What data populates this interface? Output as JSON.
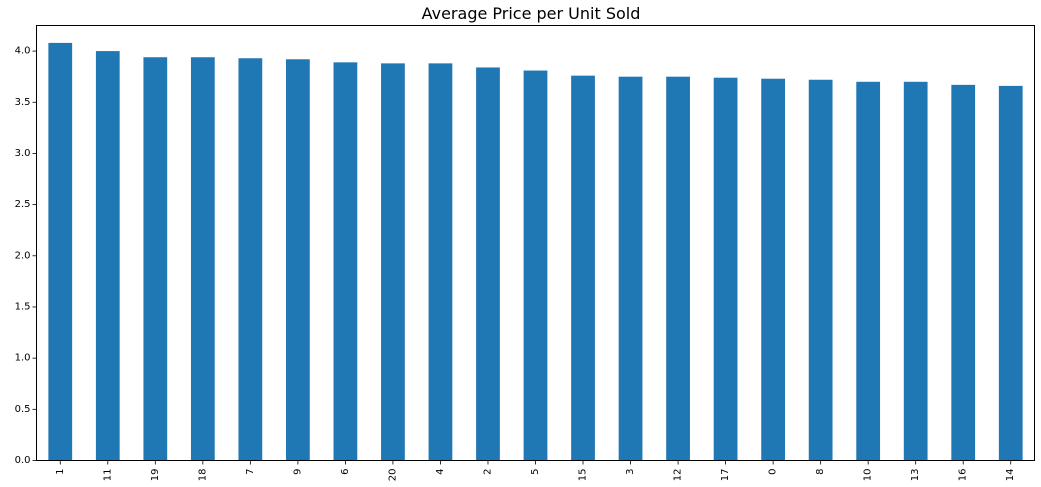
{
  "chart_data": {
    "type": "bar",
    "title": "Average Price per Unit Sold",
    "xlabel": "",
    "ylabel": "",
    "categories": [
      "1",
      "11",
      "19",
      "18",
      "7",
      "9",
      "6",
      "20",
      "4",
      "2",
      "5",
      "15",
      "3",
      "12",
      "17",
      "0",
      "8",
      "10",
      "13",
      "16",
      "14"
    ],
    "values": [
      4.08,
      4.0,
      3.94,
      3.94,
      3.93,
      3.92,
      3.89,
      3.88,
      3.88,
      3.84,
      3.81,
      3.76,
      3.75,
      3.75,
      3.74,
      3.73,
      3.72,
      3.7,
      3.7,
      3.67,
      3.66
    ],
    "ylim": [
      0,
      4.25
    ],
    "yticks": [
      0.0,
      0.5,
      1.0,
      1.5,
      2.0,
      2.5,
      3.0,
      3.5,
      4.0
    ],
    "ytick_labels": [
      "0.0",
      "0.5",
      "1.0",
      "1.5",
      "2.0",
      "2.5",
      "3.0",
      "3.5",
      "4.0"
    ],
    "grid": false,
    "legend": "none",
    "bar_color": "#1f77b4"
  }
}
